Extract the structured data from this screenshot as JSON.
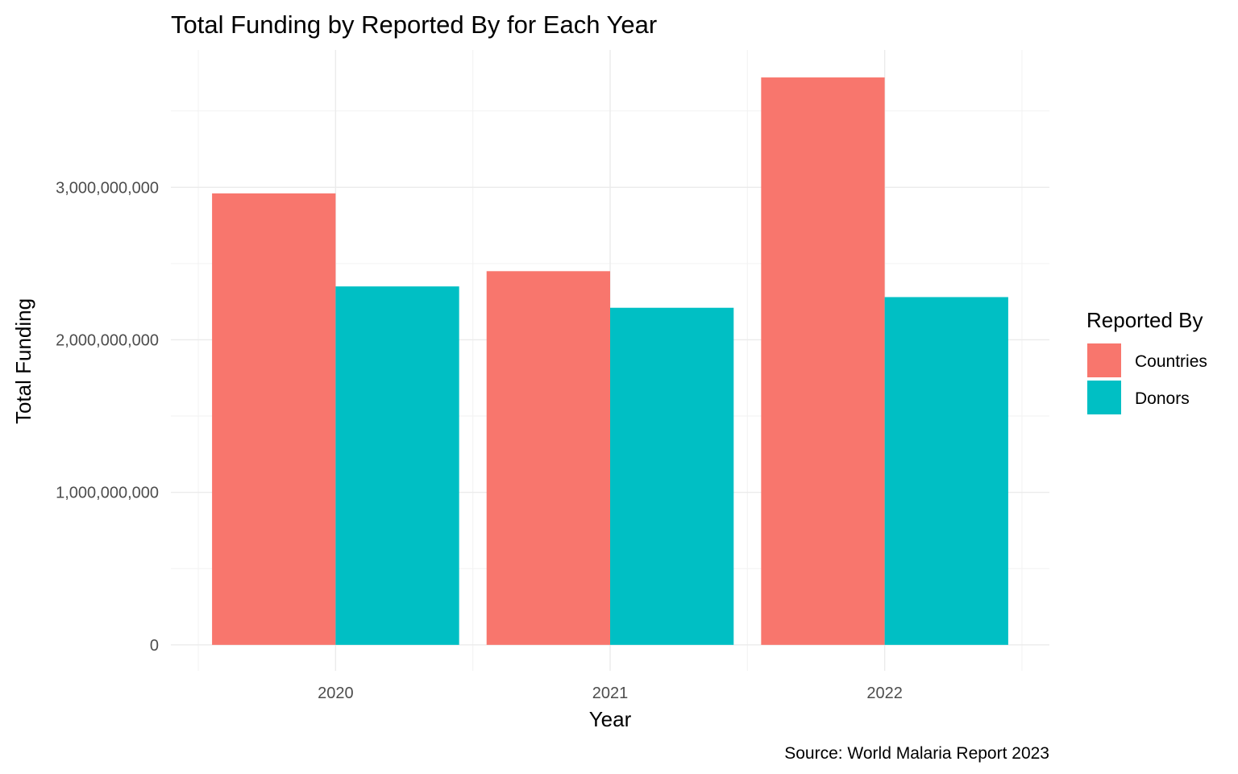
{
  "chart_data": {
    "type": "bar",
    "title": "Total Funding by Reported By for Each Year",
    "xlabel": "Year",
    "ylabel": "Total Funding",
    "caption": "Source: World Malaria Report 2023",
    "categories": [
      "2020",
      "2021",
      "2022"
    ],
    "series": [
      {
        "name": "Countries",
        "color": "#F8766D",
        "values": [
          2960000000,
          2450000000,
          3720000000
        ]
      },
      {
        "name": "Donors",
        "color": "#00BFC4",
        "values": [
          2350000000,
          2210000000,
          2280000000
        ]
      }
    ],
    "ylim": [
      -170000000,
      3900000000
    ],
    "yticks": [
      0,
      1000000000,
      2000000000,
      3000000000
    ],
    "ytick_labels": [
      "0",
      "1,000,000,000",
      "2,000,000,000",
      "3,000,000,000"
    ],
    "legend": {
      "title": "Reported By",
      "position": "right"
    },
    "grid": true
  }
}
